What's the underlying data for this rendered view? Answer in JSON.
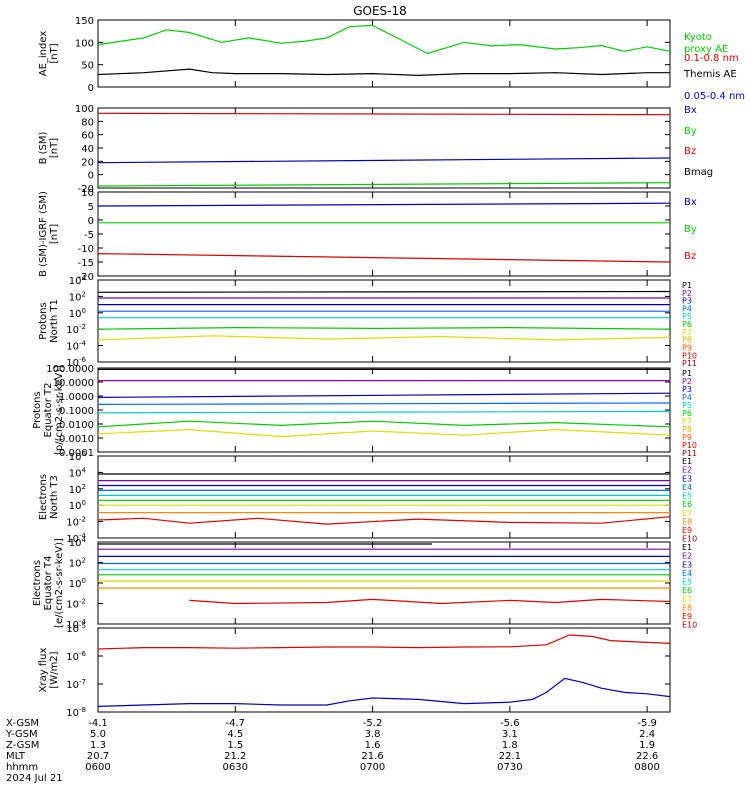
{
  "title": "GOES-18",
  "time_ticks": [
    "0600",
    "0630",
    "0700",
    "0730",
    "0800"
  ],
  "ephemeris": {
    "labels": [
      "X-GSM",
      "Y-GSM",
      "Z-GSM",
      "MLT",
      "hhmm",
      "2024 Jul 21"
    ],
    "rows": [
      [
        "-4.1",
        "-4.7",
        "-5.2",
        "-5.6",
        "-5.9"
      ],
      [
        "5.0",
        "4.5",
        "3.8",
        "3.1",
        "2.4"
      ],
      [
        "1.3",
        "1.5",
        "1.6",
        "1.8",
        "1.9"
      ],
      [
        "20.7",
        "21.2",
        "21.6",
        "22.1",
        "22.6"
      ],
      [
        "0600",
        "0630",
        "0700",
        "0730",
        "0800"
      ]
    ]
  },
  "colors": {
    "black": "#000000",
    "red": "#dd0000",
    "green": "#00cc00",
    "blue": "#0000bb",
    "cyan": "#00cccc",
    "yellow": "#dddd00",
    "orange": "#ff8800",
    "purple": "#8800aa"
  },
  "chart_data": [
    {
      "type": "line",
      "id": "ae",
      "ylabel": "AE_index\n[nT]",
      "ylim": [
        0,
        150
      ],
      "yticks": [
        "0",
        "50",
        "100",
        "150"
      ],
      "series": [
        {
          "name": "Kyoto\nproxy AE",
          "color": "#00cc00",
          "x": [
            0,
            10,
            15,
            20,
            27,
            33,
            40,
            45,
            50,
            55,
            60,
            65,
            72,
            80,
            86,
            92,
            100,
            105,
            110,
            115,
            120,
            125
          ],
          "y": [
            95,
            110,
            128,
            122,
            100,
            110,
            98,
            102,
            110,
            135,
            138,
            112,
            75,
            100,
            92,
            95,
            85,
            88,
            93,
            80,
            90,
            80
          ]
        },
        {
          "name": "Themis AE",
          "color": "#000000",
          "x": [
            0,
            10,
            20,
            25,
            30,
            40,
            50,
            60,
            70,
            80,
            90,
            100,
            110,
            120,
            125
          ],
          "y": [
            28,
            32,
            40,
            32,
            30,
            30,
            28,
            30,
            26,
            30,
            30,
            32,
            28,
            32,
            32
          ]
        }
      ]
    },
    {
      "type": "line",
      "id": "b",
      "ylabel": "B (SM)\n[nT]",
      "ylim": [
        -20,
        100
      ],
      "yticks": [
        "-20",
        "0",
        "20",
        "40",
        "60",
        "80",
        "100"
      ],
      "series": [
        {
          "name": "Bx",
          "color": "#0000bb",
          "x": [
            0,
            125
          ],
          "y": [
            18,
            25
          ]
        },
        {
          "name": "By",
          "color": "#00cc00",
          "x": [
            0,
            125
          ],
          "y": [
            -17,
            -12
          ]
        },
        {
          "name": "Bz",
          "color": "#dd0000",
          "x": [
            0,
            125
          ],
          "y": [
            92,
            90
          ]
        },
        {
          "name": "Bmag",
          "color": "#000000",
          "x": [],
          "y": []
        }
      ]
    },
    {
      "type": "line",
      "id": "bigrf",
      "ylabel": "B (SM)-IGRF (SM)\n[nT]",
      "ylim": [
        -20,
        10
      ],
      "yticks": [
        "-20",
        "-15",
        "-10",
        "-5",
        "0",
        "5",
        "10"
      ],
      "series": [
        {
          "name": "Bx",
          "color": "#0000bb",
          "x": [
            0,
            125
          ],
          "y": [
            5,
            6
          ]
        },
        {
          "name": "By",
          "color": "#00cc00",
          "x": [
            0,
            125
          ],
          "y": [
            -1,
            -1
          ]
        },
        {
          "name": "Bz",
          "color": "#dd0000",
          "x": [
            0,
            125
          ],
          "y": [
            -12,
            -15
          ]
        }
      ]
    },
    {
      "type": "line",
      "id": "pt1",
      "yscale": "log",
      "ylabel": "Protons\nNorth T1",
      "ylim": [
        -6,
        4
      ],
      "yticks": [
        "10-6",
        "10-4",
        "10-2",
        "100",
        "102",
        "104"
      ],
      "series": [
        {
          "name": "P1",
          "color": "#000000",
          "x": [
            0,
            125
          ],
          "y": [
            2.5,
            2.6
          ]
        },
        {
          "name": "P2",
          "color": "#8800aa",
          "x": [
            0,
            125
          ],
          "y": [
            1.8,
            1.8
          ]
        },
        {
          "name": "P3",
          "color": "#0000bb",
          "x": [
            0,
            125
          ],
          "y": [
            1.0,
            1.0
          ]
        },
        {
          "name": "P4",
          "color": "#0066ff",
          "x": [
            0,
            125
          ],
          "y": [
            0.2,
            0.2
          ]
        },
        {
          "name": "P5",
          "color": "#00cccc",
          "x": [
            0,
            125
          ],
          "y": [
            -0.6,
            -0.6
          ]
        },
        {
          "name": "P6",
          "color": "#00cc00",
          "x": [
            0,
            30,
            60,
            90,
            125
          ],
          "y": [
            -2.0,
            -1.8,
            -1.9,
            -1.8,
            -2.0
          ]
        },
        {
          "name": "P7",
          "color": "#dddd00",
          "x": [
            0,
            25,
            50,
            75,
            100,
            125
          ],
          "y": [
            -3.3,
            -2.8,
            -3.2,
            -2.9,
            -3.3,
            -3.0
          ]
        },
        {
          "name": "P8",
          "color": "#ffaa00",
          "x": [],
          "y": []
        },
        {
          "name": "P9",
          "color": "#ff5500",
          "x": [],
          "y": []
        },
        {
          "name": "P10",
          "color": "#dd0000",
          "x": [],
          "y": []
        },
        {
          "name": "P11",
          "color": "#aa0000",
          "x": [],
          "y": []
        }
      ]
    },
    {
      "type": "line",
      "id": "pt2",
      "yscale": "log",
      "ylabel": "Protons\nEquator T2\n[p/(cm2-s-sr-keV)]",
      "ylim": [
        -4,
        2
      ],
      "yticks": [
        "0.0001",
        "0.0010",
        "0.0100",
        "0.1000",
        "1.0000",
        "10.0000",
        "100.0000"
      ],
      "series": [
        {
          "name": "P1",
          "color": "#000000",
          "x": [
            0,
            125
          ],
          "y": [
            1.9,
            1.9
          ]
        },
        {
          "name": "P2",
          "color": "#8800aa",
          "x": [
            0,
            125
          ],
          "y": [
            1.1,
            1.1
          ]
        },
        {
          "name": "P3",
          "color": "#0000bb",
          "x": [
            0,
            125
          ],
          "y": [
            -0.1,
            0.2
          ]
        },
        {
          "name": "P4",
          "color": "#0066ff",
          "x": [
            0,
            125
          ],
          "y": [
            -0.6,
            -0.5
          ]
        },
        {
          "name": "P5",
          "color": "#00cccc",
          "x": [
            0,
            125
          ],
          "y": [
            -1.2,
            -1.1
          ]
        },
        {
          "name": "P6",
          "color": "#00cc00",
          "x": [
            0,
            20,
            40,
            60,
            80,
            100,
            125
          ],
          "y": [
            -2.2,
            -1.8,
            -2.1,
            -1.8,
            -2.1,
            -1.9,
            -2.2
          ]
        },
        {
          "name": "P7",
          "color": "#dddd00",
          "x": [
            0,
            20,
            40,
            60,
            80,
            100,
            125
          ],
          "y": [
            -2.7,
            -2.4,
            -2.9,
            -2.5,
            -2.8,
            -2.4,
            -2.8
          ]
        },
        {
          "name": "P8",
          "color": "#ffaa00",
          "x": [],
          "y": []
        },
        {
          "name": "P9",
          "color": "#ff5500",
          "x": [],
          "y": []
        },
        {
          "name": "P10",
          "color": "#dd0000",
          "x": [],
          "y": []
        },
        {
          "name": "P11",
          "color": "#aa0000",
          "x": [],
          "y": []
        }
      ]
    },
    {
      "type": "line",
      "id": "et3",
      "yscale": "log",
      "ylabel": "Electrons\nNorth T3",
      "ylim": [
        -4,
        6
      ],
      "yticks": [
        "10-4",
        "10-2",
        "100",
        "102",
        "104",
        "106"
      ],
      "series": [
        {
          "name": "E1",
          "color": "#000000",
          "x": [
            0,
            125
          ],
          "y": [
            3.8,
            3.8
          ]
        },
        {
          "name": "E2",
          "color": "#8800aa",
          "x": [
            0,
            125
          ],
          "y": [
            3.0,
            3.0
          ]
        },
        {
          "name": "E3",
          "color": "#0000bb",
          "x": [
            0,
            125
          ],
          "y": [
            2.4,
            2.4
          ]
        },
        {
          "name": "E4",
          "color": "#0066ff",
          "x": [
            0,
            125
          ],
          "y": [
            1.8,
            1.8
          ]
        },
        {
          "name": "E5",
          "color": "#00cccc",
          "x": [
            0,
            125
          ],
          "y": [
            1.2,
            1.2
          ]
        },
        {
          "name": "E6",
          "color": "#00cc00",
          "x": [
            0,
            125
          ],
          "y": [
            0.6,
            0.6
          ]
        },
        {
          "name": "E7",
          "color": "#dddd00",
          "x": [
            0,
            125
          ],
          "y": [
            0.0,
            0.0
          ]
        },
        {
          "name": "E8",
          "color": "#ff8800",
          "x": [
            0,
            125
          ],
          "y": [
            -0.9,
            -0.9
          ]
        },
        {
          "name": "E9",
          "color": "#dd0000",
          "x": [
            0,
            10,
            20,
            35,
            50,
            70,
            90,
            110,
            125
          ],
          "y": [
            -1.8,
            -1.6,
            -2.2,
            -1.6,
            -2.3,
            -1.7,
            -2.1,
            -2.2,
            -1.4
          ]
        },
        {
          "name": "E10",
          "color": "#aa0000",
          "x": [],
          "y": []
        }
      ]
    },
    {
      "type": "line",
      "id": "et4",
      "yscale": "log",
      "ylabel": "Electrons\nEquator T4\n[e/(cm2-s-sr-keV)]",
      "ylim": [
        -4,
        4
      ],
      "yticks": [
        "10-4",
        "10-2",
        "100",
        "102",
        "104"
      ],
      "series": [
        {
          "name": "E1",
          "color": "#000000",
          "x": [
            0,
            73
          ],
          "y": [
            3.8,
            3.8
          ]
        },
        {
          "name": "E2",
          "color": "#8800aa",
          "x": [
            0,
            125
          ],
          "y": [
            3.3,
            3.3
          ]
        },
        {
          "name": "E3",
          "color": "#0000bb",
          "x": [
            0,
            125
          ],
          "y": [
            2.6,
            2.6
          ]
        },
        {
          "name": "E4",
          "color": "#0066ff",
          "x": [
            0,
            125
          ],
          "y": [
            1.9,
            1.9
          ]
        },
        {
          "name": "E5",
          "color": "#00cccc",
          "x": [
            0,
            125
          ],
          "y": [
            1.3,
            1.3
          ]
        },
        {
          "name": "E6",
          "color": "#00cc00",
          "x": [
            0,
            125
          ],
          "y": [
            0.8,
            0.8
          ]
        },
        {
          "name": "E7",
          "color": "#dddd00",
          "x": [
            0,
            125
          ],
          "y": [
            0.2,
            0.2
          ]
        },
        {
          "name": "E8",
          "color": "#ff8800",
          "x": [
            0,
            125
          ],
          "y": [
            -0.5,
            -0.5
          ]
        },
        {
          "name": "E9",
          "color": "#dd0000",
          "x": [
            20,
            30,
            50,
            60,
            75,
            90,
            100,
            110,
            125
          ],
          "y": [
            -1.7,
            -2.0,
            -1.9,
            -1.6,
            -2.0,
            -1.7,
            -1.9,
            -1.6,
            -1.8
          ]
        },
        {
          "name": "E10",
          "color": "#aa0000",
          "x": [],
          "y": []
        }
      ]
    },
    {
      "type": "line",
      "id": "xray",
      "yscale": "log",
      "ylabel": "Xray flux\n[W/m2]",
      "ylim": [
        -8,
        -5
      ],
      "yticks": [
        "10-8",
        "10-7",
        "10-6",
        "10-5"
      ],
      "series": [
        {
          "name": "0.1-0.8 nm",
          "color": "#dd0000",
          "x": [
            0,
            10,
            20,
            30,
            40,
            50,
            60,
            70,
            80,
            90,
            98,
            103,
            108,
            112,
            118,
            125
          ],
          "y": [
            -5.75,
            -5.7,
            -5.7,
            -5.72,
            -5.7,
            -5.68,
            -5.68,
            -5.7,
            -5.68,
            -5.67,
            -5.6,
            -5.25,
            -5.3,
            -5.45,
            -5.5,
            -5.55
          ]
        },
        {
          "name": "0.05-0.4 nm",
          "color": "#0000bb",
          "x": [
            0,
            10,
            20,
            30,
            40,
            50,
            55,
            60,
            70,
            80,
            90,
            95,
            98,
            102,
            106,
            110,
            115,
            120,
            125
          ],
          "y": [
            -7.8,
            -7.75,
            -7.7,
            -7.7,
            -7.75,
            -7.75,
            -7.6,
            -7.5,
            -7.55,
            -7.7,
            -7.65,
            -7.55,
            -7.3,
            -6.8,
            -6.95,
            -7.15,
            -7.3,
            -7.35,
            -7.45
          ]
        }
      ]
    }
  ]
}
